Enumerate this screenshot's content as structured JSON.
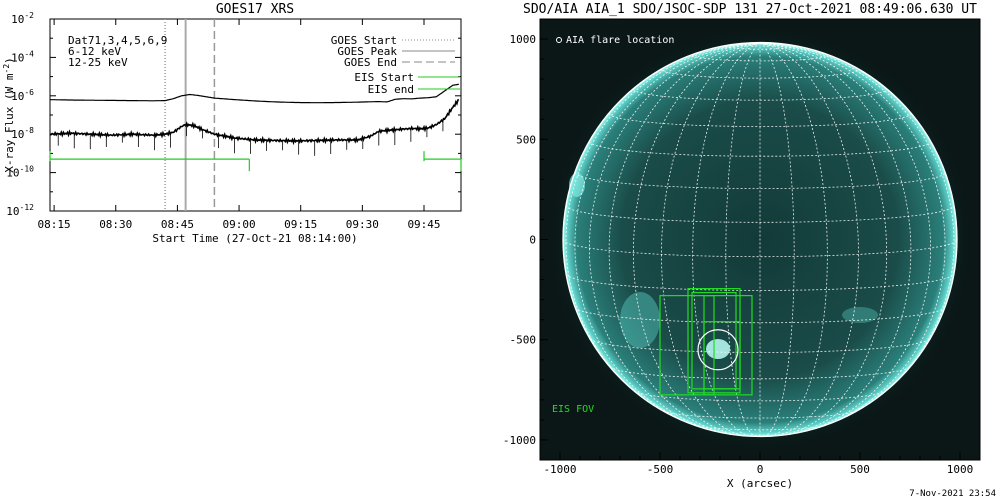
{
  "chart_data": [
    {
      "type": "line",
      "title": "GOES17 XRS",
      "xlabel": "Start Time (27-Oct-21 08:14:00)",
      "ylabel": "X-ray Flux (W m⁻²)",
      "ylabel_main": "X-ray Flux (W m",
      "ylabel_sup": "-2",
      "ylabel_close": ")",
      "yscale": "log",
      "xlim_minutes": [
        0,
        100
      ],
      "ylim_exponent": [
        -12,
        -2
      ],
      "xticks": [
        {
          "label": "08:15",
          "minute": 1
        },
        {
          "label": "08:30",
          "minute": 16
        },
        {
          "label": "08:45",
          "minute": 31
        },
        {
          "label": "09:00",
          "minute": 46
        },
        {
          "label": "09:15",
          "minute": 61
        },
        {
          "label": "09:30",
          "minute": 76
        },
        {
          "label": "09:45",
          "minute": 91
        }
      ],
      "yticks": [
        {
          "base": "10",
          "exp": "-2",
          "value": -2
        },
        {
          "base": "10",
          "exp": "-4",
          "value": -4
        },
        {
          "base": "10",
          "exp": "-6",
          "value": -6
        },
        {
          "base": "10",
          "exp": "-8",
          "value": -8
        },
        {
          "base": "10",
          "exp": "-10",
          "value": -10
        },
        {
          "base": "10",
          "exp": "-12",
          "value": -12
        }
      ],
      "dataset_label": "Dat71,3,4,5,6,9",
      "channel_labels": [
        {
          "text": "6-12 keV",
          "color": "#e020e0"
        },
        {
          "text": "12-25 keV",
          "color": "#22cc22"
        }
      ],
      "legend": [
        {
          "label": "GOES Start",
          "style": "dotted"
        },
        {
          "label": "GOES Peak",
          "style": "solid"
        },
        {
          "label": "GOES End",
          "style": "dashed"
        },
        {
          "label": "EIS Start",
          "style": "green"
        },
        {
          "label": "EIS end",
          "style": "green"
        }
      ],
      "events": {
        "goes_start": 28,
        "goes_peak": 33,
        "goes_end": 40
      },
      "series": [
        {
          "points": [
            [
              0,
              -6.2
            ],
            [
              5,
              -6.22
            ],
            [
              10,
              -6.23
            ],
            [
              15,
              -6.24
            ],
            [
              20,
              -6.25
            ],
            [
              25,
              -6.26
            ],
            [
              28,
              -6.25
            ],
            [
              30,
              -6.15
            ],
            [
              32,
              -6.0
            ],
            [
              34,
              -5.93
            ],
            [
              36,
              -5.98
            ],
            [
              38,
              -6.05
            ],
            [
              40,
              -6.12
            ],
            [
              45,
              -6.2
            ],
            [
              50,
              -6.27
            ],
            [
              55,
              -6.32
            ],
            [
              60,
              -6.35
            ],
            [
              65,
              -6.36
            ],
            [
              70,
              -6.35
            ],
            [
              75,
              -6.33
            ],
            [
              80,
              -6.3
            ],
            [
              82,
              -6.32
            ],
            [
              84,
              -6.18
            ],
            [
              86,
              -6.15
            ],
            [
              88,
              -6.16
            ],
            [
              90,
              -6.12
            ],
            [
              92,
              -6.1
            ],
            [
              94,
              -6.05
            ],
            [
              95,
              -5.9
            ],
            [
              97,
              -5.6
            ],
            [
              98,
              -5.45
            ],
            [
              99.5,
              -5.4
            ]
          ]
        },
        {
          "points": [
            [
              0,
              -8.0
            ],
            [
              5,
              -7.95
            ],
            [
              10,
              -8.0
            ],
            [
              15,
              -8.05
            ],
            [
              20,
              -8.0
            ],
            [
              25,
              -8.05
            ],
            [
              28,
              -8.0
            ],
            [
              30,
              -7.9
            ],
            [
              32,
              -7.6
            ],
            [
              33,
              -7.5
            ],
            [
              35,
              -7.55
            ],
            [
              37,
              -7.75
            ],
            [
              40,
              -8.0
            ],
            [
              45,
              -8.2
            ],
            [
              50,
              -8.3
            ],
            [
              60,
              -8.35
            ],
            [
              70,
              -8.3
            ],
            [
              75,
              -8.3
            ],
            [
              78,
              -8.1
            ],
            [
              80,
              -7.85
            ],
            [
              82,
              -7.8
            ],
            [
              85,
              -7.75
            ],
            [
              88,
              -7.7
            ],
            [
              90,
              -7.72
            ],
            [
              92,
              -7.68
            ],
            [
              94,
              -7.5
            ],
            [
              96,
              -7.2
            ],
            [
              98,
              -6.6
            ],
            [
              99.5,
              -6.2
            ]
          ]
        }
      ],
      "eis_intervals": [
        [
          0,
          48.5
        ],
        [
          91,
          100
        ]
      ]
    },
    {
      "type": "scatter",
      "title": "SDO/AIA AIA_1 SDO/JSOC-SDP 131 27-Oct-2021 08:49:06.630 UT",
      "xlabel": "X (arcsec)",
      "xlim": [
        -1100,
        1100
      ],
      "ylim": [
        -1100,
        1100
      ],
      "xticks": [
        "-1000",
        "-500",
        "0",
        "500",
        "1000"
      ],
      "xtick_values": [
        -1000,
        -500,
        0,
        500,
        1000
      ],
      "yticks": [
        "1000",
        "500",
        "0",
        "-500",
        "-1000"
      ],
      "ytick_values": [
        1000,
        500,
        0,
        -500,
        -1000
      ],
      "solar_radius_arcsec": 985,
      "flare_location": {
        "x": -210,
        "y": -550
      },
      "annotations": {
        "flare": "AIA flare location",
        "eis": "EIS FOV"
      },
      "eis_fov_boxes": [
        {
          "x0": -500,
          "x1": -230,
          "y0": -775,
          "y1": -280
        },
        {
          "x0": -360,
          "x1": -100,
          "y0": -765,
          "y1": -245
        },
        {
          "x0": -340,
          "x1": -120,
          "y0": -745,
          "y1": -265
        },
        {
          "x0": -280,
          "x1": -40,
          "y0": -775,
          "y1": -280
        },
        {
          "x0": -280,
          "x1": -100,
          "y0": -745,
          "y1": -410
        }
      ]
    }
  ],
  "footer_timestamp": "7-Nov-2021 23:54"
}
